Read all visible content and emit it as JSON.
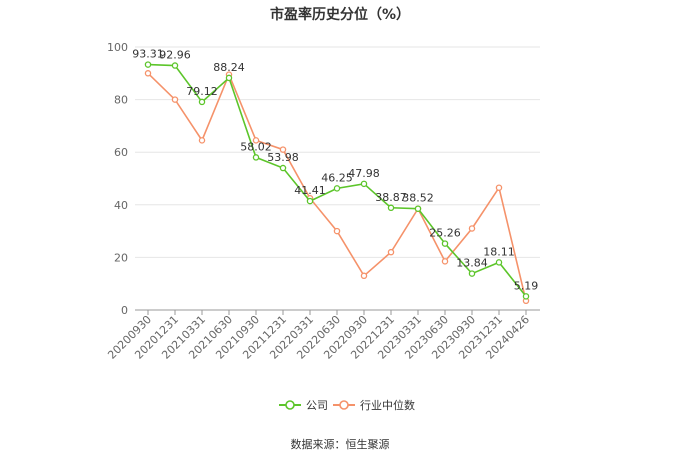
{
  "chart_data": {
    "type": "line",
    "title": "市盈率历史分位（%）",
    "categories": [
      "20200930",
      "20201231",
      "20210331",
      "20210630",
      "20210930",
      "20211231",
      "20220331",
      "20220630",
      "20220930",
      "20221231",
      "20230331",
      "20230630",
      "20230930",
      "20231231",
      "20240426"
    ],
    "ylim": [
      0,
      100
    ],
    "yticks": [
      0,
      20,
      40,
      60,
      80,
      100
    ],
    "grid": true,
    "legend_position": "bottom",
    "series": [
      {
        "name": "公司",
        "color": "#5cc52a",
        "values": [
          93.31,
          92.96,
          79.12,
          88.24,
          58.02,
          53.98,
          41.41,
          46.25,
          47.98,
          38.87,
          38.52,
          25.26,
          13.84,
          18.11,
          5.19
        ],
        "labels": [
          "93.31",
          "92.96",
          "79.12",
          "88.24",
          "58.02",
          "53.98",
          "41.41",
          "46.25",
          "47.98",
          "38.87",
          "38.52",
          "25.26",
          "13.84",
          "18.11",
          "5.19"
        ]
      },
      {
        "name": "行业中位数",
        "color": "#f5926a",
        "values": [
          90,
          80,
          64.5,
          89.5,
          64.5,
          61,
          42.5,
          30,
          13,
          22,
          38.5,
          18.5,
          31,
          46.5,
          3.5
        ]
      }
    ],
    "source": "数据来源：恒生聚源"
  }
}
